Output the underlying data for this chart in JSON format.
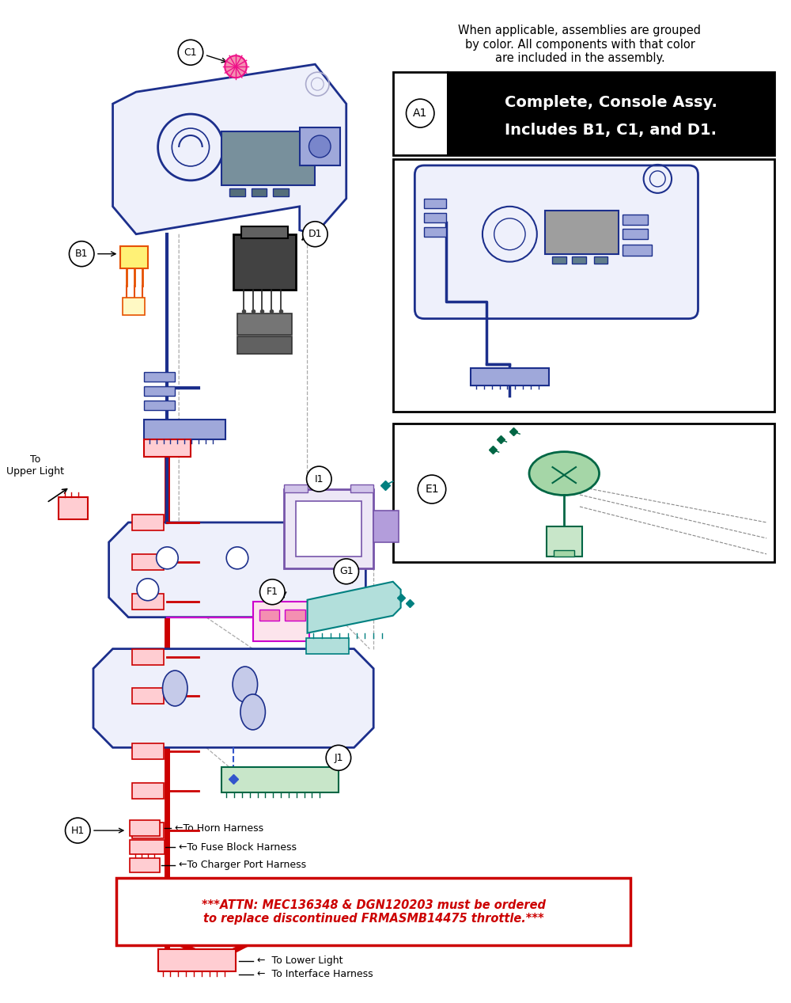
{
  "bg_color": "#ffffff",
  "note_text": "When applicable, assemblies are grouped\nby color. All components with that color\nare included in the assembly.",
  "assembly_title_line1": "Complete, Console Assy.",
  "assembly_title_line2": "Includes B1, C1, and D1.",
  "attn_text": "***ATTN: MEC136348 & DGN120203 must be ordered\nto replace discontinued FRMASMB14475 throttle.***",
  "navy": "#1c2f8c",
  "red": "#cc0000",
  "magenta": "#cc00cc",
  "pink_magenta": "#dd44aa",
  "teal": "#008080",
  "purple": "#7755aa",
  "yellow_gold": "#cc9900",
  "green": "#006644",
  "pink_hot": "#ee1188",
  "gray": "#888888",
  "lightblue": "#c5cae9",
  "lightyellow": "#fff9c4",
  "lightgreen": "#c8e6c9",
  "lightpink": "#fce4ec",
  "lightpurple": "#ede7f6"
}
